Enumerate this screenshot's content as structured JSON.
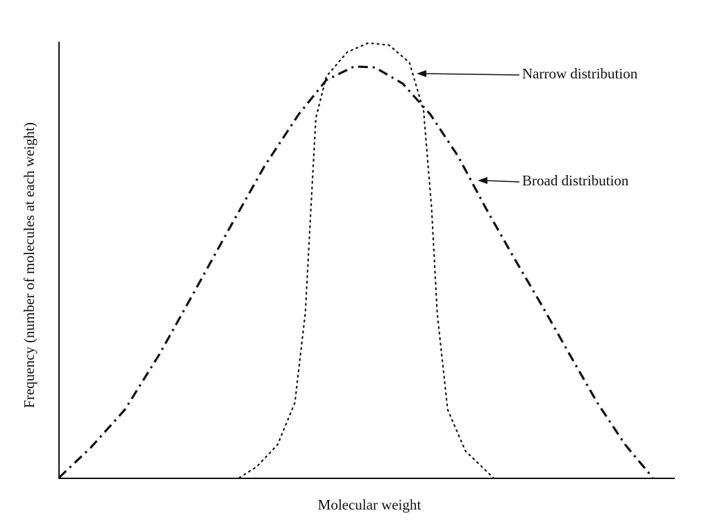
{
  "chart_data": {
    "type": "line",
    "xlabel": "Molecular weight",
    "ylabel": "Frequency (number of molecules at each weight)",
    "xlim": [
      0,
      100
    ],
    "ylim": [
      0,
      100
    ],
    "series": [
      {
        "name": "Broad distribution",
        "color": "#111111",
        "x": [
          0,
          5.1,
          10.7,
          16.3,
          22.0,
          27.6,
          33.3,
          38.9,
          43.4,
          47.9,
          51.3,
          55.8,
          60.3,
          64.8,
          69.3,
          73.8,
          78.4,
          82.9,
          87.4,
          91.9,
          96.4
        ],
        "values": [
          0,
          6.8,
          15.6,
          28.3,
          42.7,
          57.0,
          71.3,
          83.3,
          91.2,
          94.3,
          94.1,
          90.4,
          83.3,
          73.7,
          61.8,
          50.6,
          39.5,
          28.3,
          17.2,
          7.6,
          0
        ]
      },
      {
        "name": "Narrow distribution",
        "color": "#111111",
        "x": [
          29.3,
          32.1,
          35.5,
          38.3,
          40.0,
          40.9,
          41.7,
          43.4,
          46.8,
          50.2,
          53.6,
          56.9,
          59.2,
          60.5,
          61.4,
          63.1,
          66.0,
          70.5
        ],
        "values": [
          0,
          2.5,
          7.6,
          17.2,
          37.9,
          61.8,
          82.5,
          92.0,
          97.6,
          99.7,
          99.2,
          95.2,
          84.1,
          61.8,
          37.9,
          15.6,
          6.1,
          0
        ]
      }
    ]
  }
}
